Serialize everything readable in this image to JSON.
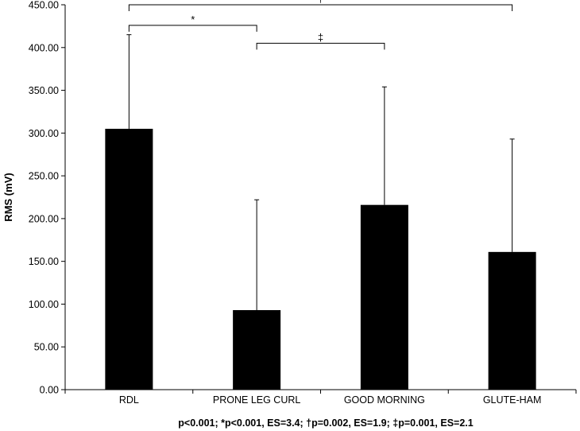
{
  "chart_data": {
    "type": "bar",
    "categories": [
      "RDL",
      "PRONE LEG CURL",
      "GOOD MORNING",
      "GLUTE-HAM"
    ],
    "values": [
      305,
      93,
      216,
      161
    ],
    "error_upper": [
      415,
      222,
      354,
      293
    ],
    "ylabel": "RMS (mV)",
    "xlabel": "",
    "ylim": [
      0,
      450
    ],
    "yticks": [
      "0.00",
      "50.00",
      "100.00",
      "150.00",
      "200.00",
      "250.00",
      "300.00",
      "350.00",
      "400.00",
      "450.00"
    ],
    "bar_color": "#000000",
    "grid": false,
    "significance": [
      {
        "from": 0,
        "to": 3,
        "symbol": "†",
        "level": 450
      },
      {
        "from": 0,
        "to": 1,
        "symbol": "*",
        "level": 426
      },
      {
        "from": 1,
        "to": 2,
        "symbol": "‡",
        "level": 405
      }
    ],
    "footnote": "p<0.001; *p<0.001, ES=3.4; †p=0.002, ES=1.9; ‡p=0.001, ES=2.1"
  }
}
